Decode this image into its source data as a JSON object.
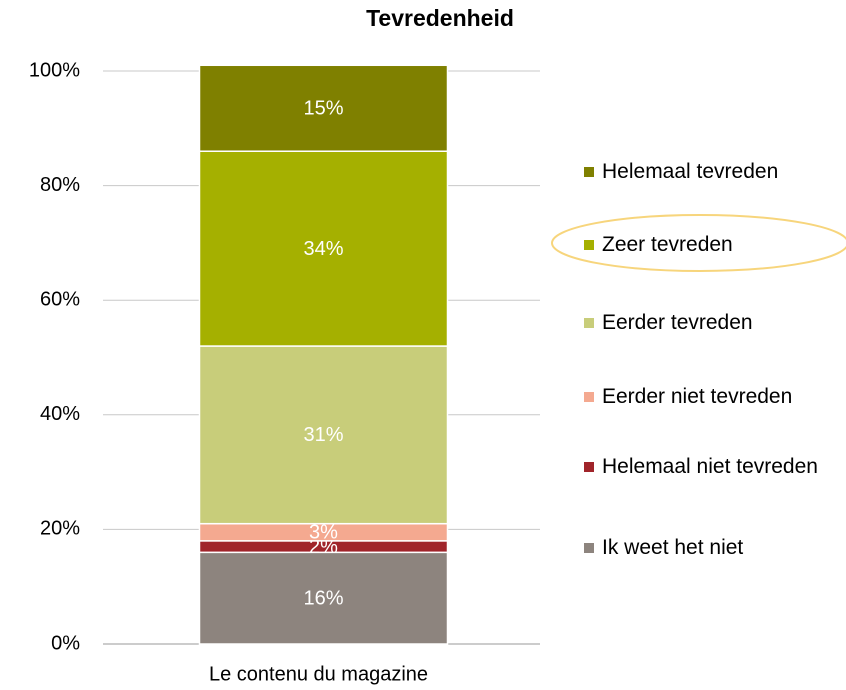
{
  "chart_data": {
    "type": "stacked_bar",
    "title": "Tevredenheid",
    "categories": [
      "Le contenu du magazine"
    ],
    "series": [
      {
        "name": "Ik weet het niet",
        "color": "#8d847e",
        "values": [
          16
        ],
        "value_labels": [
          "16%"
        ]
      },
      {
        "name": "Helemaal niet tevreden",
        "color": "#a0242a",
        "values": [
          2
        ],
        "value_labels": [
          "2%"
        ]
      },
      {
        "name": "Eerder niet tevreden",
        "color": "#f4a990",
        "values": [
          3
        ],
        "value_labels": [
          "3%"
        ]
      },
      {
        "name": "Eerder tevreden",
        "color": "#c8cd7a",
        "values": [
          31
        ],
        "value_labels": [
          "31%"
        ]
      },
      {
        "name": "Zeer tevreden",
        "color": "#a5b000",
        "values": [
          34
        ],
        "value_labels": [
          "34%"
        ]
      },
      {
        "name": "Helemaal tevreden",
        "color": "#7f8000",
        "values": [
          15
        ],
        "value_labels": [
          "15%"
        ]
      }
    ],
    "ylim": [
      0,
      100
    ],
    "yticks": [
      {
        "value": 0,
        "label": "0%"
      },
      {
        "value": 20,
        "label": "20%"
      },
      {
        "value": 40,
        "label": "40%"
      },
      {
        "value": 60,
        "label": "60%"
      },
      {
        "value": 80,
        "label": "80%"
      },
      {
        "value": 100,
        "label": "100%"
      }
    ],
    "grid": true,
    "legend": "right"
  }
}
